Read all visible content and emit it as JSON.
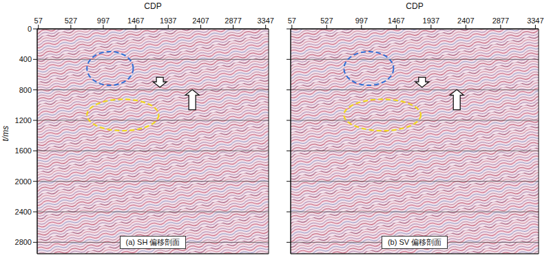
{
  "chart_data": [
    {
      "type": "image",
      "title": "(a) SH 偏移剖面",
      "x_label": "CDP",
      "y_label": "t/ms",
      "xlim": [
        40,
        3390
      ],
      "xticks": [
        57,
        527,
        997,
        1467,
        1937,
        2407,
        2877,
        3347
      ],
      "ylim": [
        0,
        2950
      ],
      "yticks": [
        0,
        400,
        800,
        1200,
        1600,
        2000,
        2400,
        2800
      ],
      "grid": true
    },
    {
      "type": "image",
      "title": "(b) SV 偏移剖面",
      "x_label": "CDP",
      "xlim": [
        40,
        3390
      ],
      "xticks": [
        57,
        527,
        997,
        1467,
        1937,
        2407,
        2877,
        3347
      ],
      "ylim": [
        0,
        2950
      ],
      "yticks": [
        0,
        400,
        800,
        1200,
        1600,
        2000,
        2400,
        2800
      ],
      "grid": true,
      "tick_labels": "x"
    }
  ]
}
